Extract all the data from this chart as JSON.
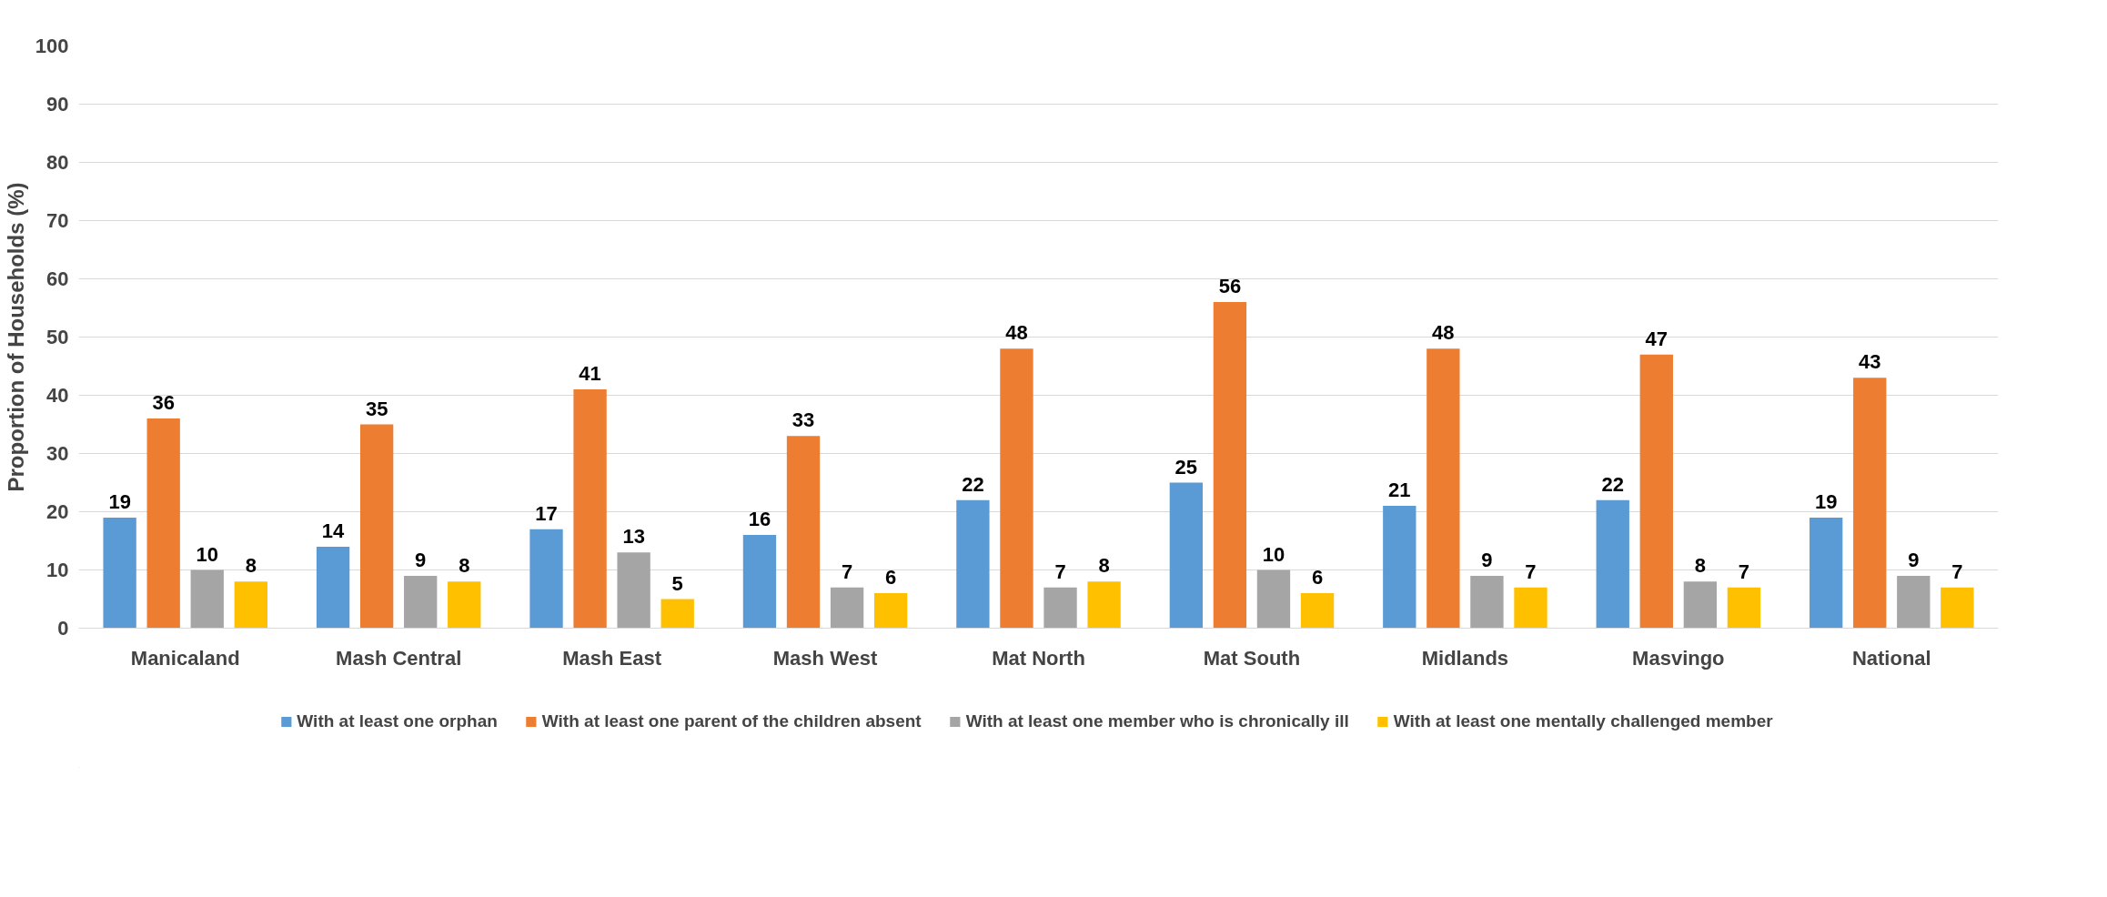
{
  "chart_data": {
    "type": "bar",
    "ylabel": "Proportion of Households (%)",
    "categories": [
      "Manicaland",
      "Mash Central",
      "Mash East",
      "Mash West",
      "Mat North",
      "Mat South",
      "Midlands",
      "Masvingo",
      "National"
    ],
    "series": [
      {
        "name": "With at least one orphan",
        "color": "#5b9bd5",
        "values": [
          19,
          14,
          17,
          16,
          22,
          25,
          21,
          22,
          19
        ]
      },
      {
        "name": "With at least one parent of the children absent",
        "color": "#ed7d31",
        "values": [
          36,
          35,
          41,
          33,
          48,
          56,
          48,
          47,
          43
        ]
      },
      {
        "name": "With at least one member who is chronically ill",
        "color": "#a5a5a5",
        "values": [
          10,
          9,
          13,
          7,
          7,
          10,
          9,
          8,
          9
        ]
      },
      {
        "name": "With at least one mentally challenged member",
        "color": "#ffc000",
        "values": [
          8,
          8,
          5,
          6,
          8,
          6,
          7,
          7,
          7
        ]
      }
    ],
    "ylim": [
      0,
      100
    ],
    "yticks": [
      0,
      10,
      20,
      30,
      40,
      50,
      60,
      70,
      80,
      90,
      100
    ],
    "grid": "y",
    "legend": "bottom",
    "data_labels": true
  }
}
